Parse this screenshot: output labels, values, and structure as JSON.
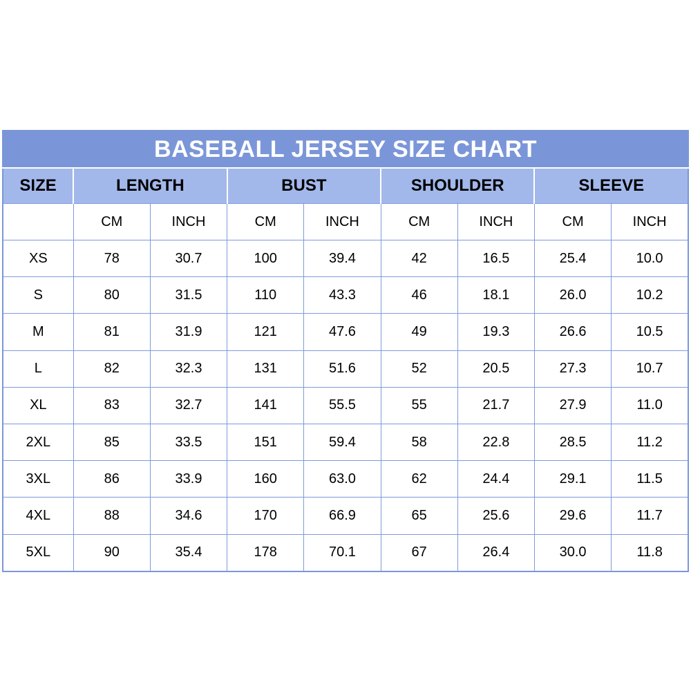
{
  "colors": {
    "title_bar_bg": "#7b96d8",
    "header_row_bg": "#a3b8ea",
    "grid_border": "#7e99dc",
    "inch_text": "#8da9ee",
    "title_text": "#ffffff",
    "body_text": "#000000",
    "page_background": "#ffffff"
  },
  "chart_data": {
    "type": "table",
    "title": "BASEBALL JERSEY SIZE CHART",
    "columns": {
      "size": "SIZE",
      "groups": [
        "LENGTH",
        "BUST",
        "SHOULDER",
        "SLEEVE"
      ],
      "units": {
        "cm": "CM",
        "inch": "INCH"
      }
    },
    "rows": [
      {
        "size": "XS",
        "length_cm": "78",
        "length_inch": "30.7",
        "bust_cm": "100",
        "bust_inch": "39.4",
        "shoulder_cm": "42",
        "shoulder_inch": "16.5",
        "sleeve_cm": "25.4",
        "sleeve_inch": "10.0"
      },
      {
        "size": "S",
        "length_cm": "80",
        "length_inch": "31.5",
        "bust_cm": "110",
        "bust_inch": "43.3",
        "shoulder_cm": "46",
        "shoulder_inch": "18.1",
        "sleeve_cm": "26.0",
        "sleeve_inch": "10.2"
      },
      {
        "size": "M",
        "length_cm": "81",
        "length_inch": "31.9",
        "bust_cm": "121",
        "bust_inch": "47.6",
        "shoulder_cm": "49",
        "shoulder_inch": "19.3",
        "sleeve_cm": "26.6",
        "sleeve_inch": "10.5"
      },
      {
        "size": "L",
        "length_cm": "82",
        "length_inch": "32.3",
        "bust_cm": "131",
        "bust_inch": "51.6",
        "shoulder_cm": "52",
        "shoulder_inch": "20.5",
        "sleeve_cm": "27.3",
        "sleeve_inch": "10.7"
      },
      {
        "size": "XL",
        "length_cm": "83",
        "length_inch": "32.7",
        "bust_cm": "141",
        "bust_inch": "55.5",
        "shoulder_cm": "55",
        "shoulder_inch": "21.7",
        "sleeve_cm": "27.9",
        "sleeve_inch": "11.0"
      },
      {
        "size": "2XL",
        "length_cm": "85",
        "length_inch": "33.5",
        "bust_cm": "151",
        "bust_inch": "59.4",
        "shoulder_cm": "58",
        "shoulder_inch": "22.8",
        "sleeve_cm": "28.5",
        "sleeve_inch": "11.2"
      },
      {
        "size": "3XL",
        "length_cm": "86",
        "length_inch": "33.9",
        "bust_cm": "160",
        "bust_inch": "63.0",
        "shoulder_cm": "62",
        "shoulder_inch": "24.4",
        "sleeve_cm": "29.1",
        "sleeve_inch": "11.5"
      },
      {
        "size": "4XL",
        "length_cm": "88",
        "length_inch": "34.6",
        "bust_cm": "170",
        "bust_inch": "66.9",
        "shoulder_cm": "65",
        "shoulder_inch": "25.6",
        "sleeve_cm": "29.6",
        "sleeve_inch": "11.7"
      },
      {
        "size": "5XL",
        "length_cm": "90",
        "length_inch": "35.4",
        "bust_cm": "178",
        "bust_inch": "70.1",
        "shoulder_cm": "67",
        "shoulder_inch": "26.4",
        "sleeve_cm": "30.0",
        "sleeve_inch": "11.8"
      }
    ]
  }
}
